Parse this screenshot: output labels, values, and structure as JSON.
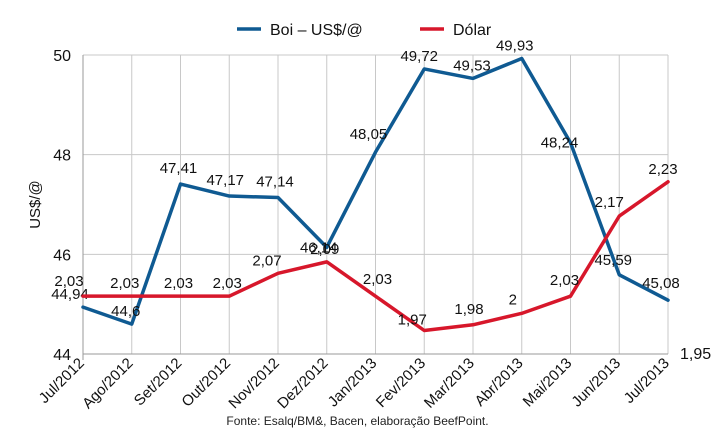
{
  "source_note": "Fonte: Esalq/BM&, Bacen, elaboração BeefPoint.",
  "chart_data": {
    "type": "line",
    "categories": [
      "Jul/2012",
      "Ago/2012",
      "Set/2012",
      "Out/2012",
      "Nov/2012",
      "Dez/2012",
      "Jan/2013",
      "Fev/2013",
      "Mar/2013",
      "Abr/2013",
      "Mai/2013",
      "Jun/2013",
      "Jul/2013"
    ],
    "ylabel": "US$/@",
    "ylim": [
      44,
      50
    ],
    "yticks": [
      "44",
      "46",
      "48",
      "50"
    ],
    "y2_tick_shown": "1,95",
    "grid": true,
    "legend_position": "top",
    "series": [
      {
        "name": "Boi – US$/@",
        "color": "#0f5a92",
        "axis": "left",
        "values": [
          44.94,
          44.6,
          47.41,
          47.17,
          47.14,
          46.14,
          48.05,
          49.72,
          49.53,
          49.93,
          48.24,
          45.59,
          45.08
        ],
        "labels": [
          "44,94",
          "44,6",
          "47,41",
          "47,17",
          "47,14",
          "46,14",
          "48,05",
          "49,72",
          "49,53",
          "49,93",
          "48,24",
          "45,59",
          "45,08"
        ]
      },
      {
        "name": "Dólar",
        "color": "#d7172b",
        "axis": "right",
        "values": [
          2.03,
          2.03,
          2.03,
          2.03,
          2.07,
          2.09,
          2.03,
          1.97,
          1.98,
          2.0,
          2.03,
          2.17,
          2.23
        ],
        "labels": [
          "2,03",
          "2,03",
          "2,03",
          "2,03",
          "2,07",
          "2,09",
          "2,03",
          "1,97",
          "1,98",
          "2",
          "2,03",
          "2,17",
          "2,23"
        ]
      }
    ]
  }
}
